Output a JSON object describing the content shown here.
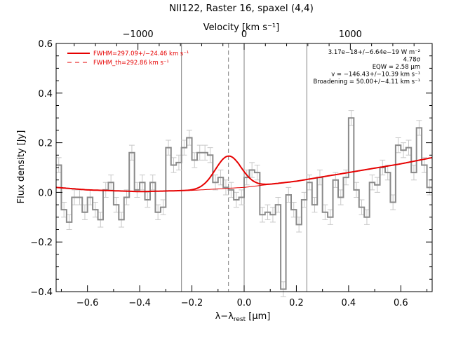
{
  "chart_data": {
    "type": "line",
    "title": "NII122, Raster 16, spaxel (4,4)",
    "xlabel_main": "λ−λ",
    "xlabel_sub": "rest",
    "xlabel_unit": " [μm]",
    "ylabel": "Flux density [Jy]",
    "top_axis_label": "Velocity [km s⁻¹]",
    "xlim": [
      -0.72,
      0.72
    ],
    "ylim": [
      -0.4,
      0.6
    ],
    "grid": false,
    "x_ticks": [
      {
        "v": -0.6,
        "label": "−0.6"
      },
      {
        "v": -0.4,
        "label": "−0.4"
      },
      {
        "v": -0.2,
        "label": "−0.2"
      },
      {
        "v": 0.0,
        "label": "0.0"
      },
      {
        "v": 0.2,
        "label": "0.2"
      },
      {
        "v": 0.4,
        "label": "0.4"
      },
      {
        "v": 0.6,
        "label": "0.6"
      }
    ],
    "y_ticks": [
      {
        "v": -0.4,
        "label": "−0.4"
      },
      {
        "v": -0.2,
        "label": "−0.2"
      },
      {
        "v": 0.0,
        "label": "0.0"
      },
      {
        "v": 0.2,
        "label": "0.2"
      },
      {
        "v": 0.4,
        "label": "0.4"
      },
      {
        "v": 0.6,
        "label": "0.6"
      }
    ],
    "top_ticks": [
      {
        "v": -1000,
        "label": "−1000"
      },
      {
        "v": 0,
        "label": "0"
      },
      {
        "v": 1000,
        "label": "1000"
      }
    ],
    "velocity_per_um": 2459,
    "spectrum_step": 0.02,
    "spectrum_x": [
      -0.71,
      -0.69,
      -0.67,
      -0.65,
      -0.63,
      -0.61,
      -0.59,
      -0.57,
      -0.55,
      -0.53,
      -0.51,
      -0.49,
      -0.47,
      -0.45,
      -0.43,
      -0.41,
      -0.39,
      -0.37,
      -0.35,
      -0.33,
      -0.31,
      -0.29,
      -0.27,
      -0.25,
      -0.23,
      -0.21,
      -0.19,
      -0.17,
      -0.15,
      -0.13,
      -0.11,
      -0.09,
      -0.07,
      -0.05,
      -0.03,
      -0.01,
      0.01,
      0.03,
      0.05,
      0.07,
      0.09,
      0.11,
      0.13,
      0.15,
      0.17,
      0.19,
      0.21,
      0.23,
      0.25,
      0.27,
      0.29,
      0.31,
      0.33,
      0.35,
      0.37,
      0.39,
      0.41,
      0.43,
      0.45,
      0.47,
      0.49,
      0.51,
      0.53,
      0.55,
      0.57,
      0.59,
      0.61,
      0.63,
      0.65,
      0.67,
      0.69,
      0.71
    ],
    "spectrum_y": [
      0.11,
      -0.07,
      -0.12,
      -0.02,
      -0.02,
      -0.08,
      -0.02,
      -0.07,
      -0.11,
      0.01,
      0.04,
      -0.05,
      -0.11,
      -0.02,
      0.16,
      0.01,
      0.04,
      -0.03,
      0.04,
      -0.08,
      -0.06,
      0.18,
      0.11,
      0.12,
      0.18,
      0.22,
      0.13,
      0.16,
      0.16,
      0.15,
      0.04,
      0.06,
      0.02,
      0.01,
      -0.03,
      -0.02,
      0.06,
      0.09,
      0.08,
      -0.09,
      -0.08,
      -0.09,
      -0.05,
      -0.39,
      -0.01,
      -0.07,
      -0.13,
      -0.03,
      0.04,
      -0.05,
      0.06,
      -0.08,
      -0.1,
      0.05,
      -0.02,
      0.06,
      0.3,
      0.01,
      -0.06,
      -0.1,
      0.04,
      0.03,
      0.1,
      0.08,
      -0.04,
      0.19,
      0.17,
      0.18,
      0.08,
      0.26,
      0.11,
      0.02
    ],
    "spectrum_err": 0.03,
    "fit_model": {
      "baseline_x": [
        -0.72,
        -0.6,
        -0.4,
        -0.2,
        0.0,
        0.2,
        0.4,
        0.6,
        0.72
      ],
      "baseline_y": [
        0.02,
        0.01,
        0.003,
        0.008,
        0.02,
        0.045,
        0.08,
        0.115,
        0.14
      ],
      "gauss_center": -0.06,
      "gauss_amp": 0.13,
      "gauss_sigma": 0.05
    },
    "vertical_lines": [
      {
        "x": -0.24,
        "style": "solid"
      },
      {
        "x": 0.0,
        "style": "solid"
      },
      {
        "x": 0.24,
        "style": "solid"
      },
      {
        "x": -0.06,
        "style": "dashed"
      }
    ],
    "legend": [
      {
        "label": "FWHM=297.09+/−24.46 km s⁻¹",
        "style": "solid",
        "color": "#e60000"
      },
      {
        "label": "FWHM_th=292.86 km s⁻¹",
        "style": "dashed",
        "color": "#e60000"
      }
    ],
    "annotations": [
      "3.17e−18+/−6.64e−19 W m⁻²",
      "4.78σ",
      "EQW = 2.58 μm",
      "v = −146.43+/−10.39 km s⁻¹",
      "Broadening = 50.00+/−4.11 km s⁻¹"
    ],
    "colors": {
      "spectrum": "#8a8a8a",
      "fit": "#e60000",
      "errorbar": "#c8c8c8",
      "guide": "#808080"
    }
  }
}
